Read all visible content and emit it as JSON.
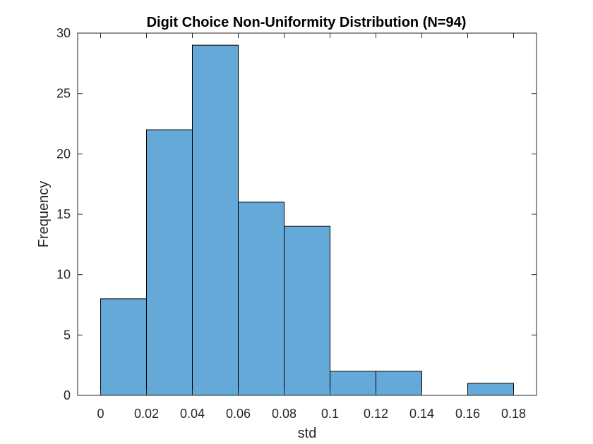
{
  "chart_data": {
    "type": "bar",
    "title": "Digit Choice Non-Uniformity Distribution (N=94)",
    "xlabel": "std",
    "ylabel": "Frequency",
    "bin_edges": [
      0,
      0.02,
      0.04,
      0.06,
      0.08,
      0.1,
      0.12,
      0.14,
      0.16,
      0.18
    ],
    "values": [
      8,
      22,
      29,
      16,
      14,
      2,
      2,
      0,
      1
    ],
    "xlim": [
      -0.01,
      0.19
    ],
    "ylim": [
      0,
      30
    ],
    "x_ticks": [
      0,
      0.02,
      0.04,
      0.06,
      0.08,
      0.1,
      0.12,
      0.14,
      0.16,
      0.18
    ],
    "x_tick_labels": [
      "0",
      "0.02",
      "0.04",
      "0.06",
      "0.08",
      "0.1",
      "0.12",
      "0.14",
      "0.16",
      "0.18"
    ],
    "y_ticks": [
      0,
      5,
      10,
      15,
      20,
      25,
      30
    ],
    "y_tick_labels": [
      "0",
      "5",
      "10",
      "15",
      "20",
      "25",
      "30"
    ],
    "bar_color": "#65a9d8",
    "edge_color": "#000000",
    "grid": false,
    "box": true
  }
}
